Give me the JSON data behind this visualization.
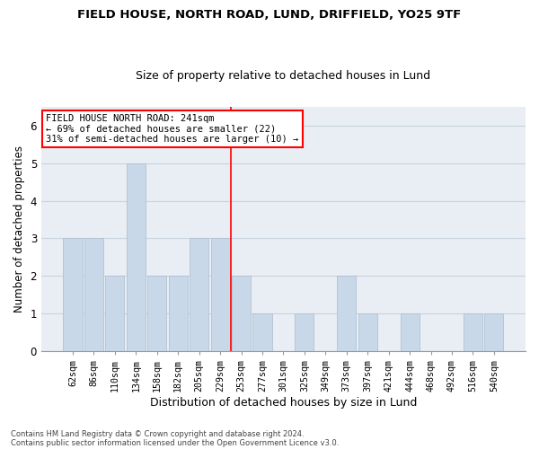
{
  "title1": "FIELD HOUSE, NORTH ROAD, LUND, DRIFFIELD, YO25 9TF",
  "title2": "Size of property relative to detached houses in Lund",
  "xlabel": "Distribution of detached houses by size in Lund",
  "ylabel": "Number of detached properties",
  "categories": [
    "62sqm",
    "86sqm",
    "110sqm",
    "134sqm",
    "158sqm",
    "182sqm",
    "205sqm",
    "229sqm",
    "253sqm",
    "277sqm",
    "301sqm",
    "325sqm",
    "349sqm",
    "373sqm",
    "397sqm",
    "421sqm",
    "444sqm",
    "468sqm",
    "492sqm",
    "516sqm",
    "540sqm"
  ],
  "values": [
    3,
    3,
    2,
    5,
    2,
    2,
    3,
    3,
    2,
    1,
    0,
    1,
    0,
    2,
    1,
    0,
    1,
    0,
    0,
    1,
    1
  ],
  "bar_color": "#c8d8e8",
  "bar_edge_color": "#aabcce",
  "annotation_line1": "FIELD HOUSE NORTH ROAD: 241sqm",
  "annotation_line2": "← 69% of detached houses are smaller (22)",
  "annotation_line3": "31% of semi-detached houses are larger (10) →",
  "vline_position": 7.5,
  "ylim_max": 6.5,
  "yticks": [
    0,
    1,
    2,
    3,
    4,
    5,
    6
  ],
  "footer1": "Contains HM Land Registry data © Crown copyright and database right 2024.",
  "footer2": "Contains public sector information licensed under the Open Government Licence v3.0.",
  "grid_color": "#c8d4de",
  "background_color": "#e8eef4",
  "bar_edge_linewidth": 0.5
}
